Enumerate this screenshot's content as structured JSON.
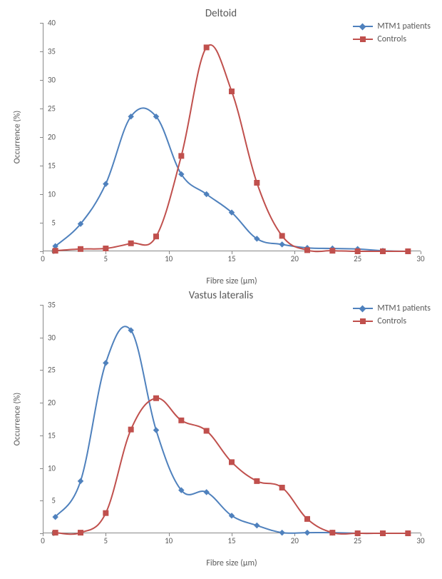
{
  "charts": [
    {
      "title": "Deltoid",
      "type": "line",
      "xlabel": "Fibre size (µm)",
      "ylabel": "Occurrence (%)",
      "xlim": [
        0,
        30
      ],
      "ylim": [
        0,
        40
      ],
      "xtick_step": 5,
      "ytick_step": 5,
      "axis_color": "#888888",
      "label_color": "#595959",
      "label_fontsize": 12,
      "title_fontsize": 15,
      "tick_fontsize": 11,
      "background": "#ffffff",
      "legend_position": "top-right",
      "series": [
        {
          "name": "MTM1 patients",
          "color": "#4f81bd",
          "marker": "diamond",
          "marker_size": 8,
          "line_width": 2,
          "x": [
            1,
            3,
            5,
            7,
            9,
            11,
            13,
            15,
            17,
            19,
            21,
            23,
            25,
            27,
            29
          ],
          "y": [
            0.9,
            4.8,
            11.8,
            23.6,
            23.6,
            13.5,
            10.0,
            6.8,
            2.2,
            1.2,
            0.6,
            0.5,
            0.4,
            0.1,
            0.0
          ]
        },
        {
          "name": "Controls",
          "color": "#c0504d",
          "marker": "square",
          "marker_size": 8,
          "line_width": 2,
          "x": [
            1,
            3,
            5,
            7,
            9,
            11,
            13,
            15,
            17,
            19,
            21,
            23,
            25,
            27,
            29
          ],
          "y": [
            0.1,
            0.4,
            0.5,
            1.4,
            2.6,
            16.7,
            35.7,
            28.0,
            12.0,
            2.7,
            0.2,
            0.1,
            0.0,
            0.0,
            0.0
          ]
        }
      ]
    },
    {
      "title": "Vastus lateralis",
      "type": "line",
      "xlabel": "Fibre size (µm)",
      "ylabel": "Occurrence (%)",
      "xlim": [
        0,
        30
      ],
      "ylim": [
        0,
        35
      ],
      "xtick_step": 5,
      "ytick_step": 5,
      "axis_color": "#888888",
      "label_color": "#595959",
      "label_fontsize": 12,
      "title_fontsize": 15,
      "tick_fontsize": 11,
      "background": "#ffffff",
      "legend_position": "top-right",
      "series": [
        {
          "name": "MTM1 patients",
          "color": "#4f81bd",
          "marker": "diamond",
          "marker_size": 8,
          "line_width": 2,
          "x": [
            1,
            3,
            5,
            7,
            9,
            11,
            13,
            15,
            17,
            19,
            21,
            23,
            25,
            27,
            29
          ],
          "y": [
            2.5,
            8.0,
            26.1,
            31.1,
            15.8,
            6.6,
            6.3,
            2.7,
            1.2,
            0.1,
            0.1,
            0.1,
            0.0,
            0.0,
            0.0
          ]
        },
        {
          "name": "Controls",
          "color": "#c0504d",
          "marker": "square",
          "marker_size": 8,
          "line_width": 2,
          "x": [
            1,
            3,
            5,
            7,
            9,
            11,
            13,
            15,
            17,
            19,
            21,
            23,
            25,
            27,
            29
          ],
          "y": [
            0.1,
            0.1,
            3.1,
            15.9,
            20.7,
            17.3,
            15.7,
            10.9,
            8.0,
            7.0,
            2.2,
            0.1,
            0.0,
            0.0,
            0.0
          ]
        }
      ]
    }
  ]
}
